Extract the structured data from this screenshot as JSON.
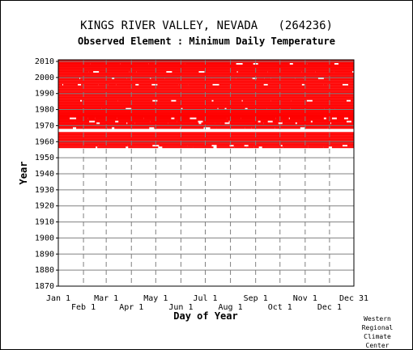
{
  "header": {
    "title": "KINGS RIVER VALLEY, NEVADA   (264236)",
    "subtitle": "Observed Element : Minimum Daily Temperature"
  },
  "credit": [
    "Western",
    "Regional",
    "Climate",
    "Center"
  ],
  "colors": {
    "data": "#ff0000",
    "grid": "#808080",
    "background": "#ffffff",
    "axis": "#000000"
  },
  "chart_data": {
    "type": "heatmap",
    "title": "KINGS RIVER VALLEY, NEVADA   (264236)",
    "subtitle": "Observed Element : Minimum Daily Temperature",
    "xlabel": "Day of Year",
    "ylabel": "Year",
    "x_ticks_top_row": [
      "Jan 1",
      "Mar 1",
      "May 1",
      "Jul 1",
      "Sep 1",
      "Nov 1",
      "Dec 31"
    ],
    "x_ticks_bottom_row": [
      "Feb 1",
      "Apr 1",
      "Jun 1",
      "Aug 1",
      "Oct 1",
      "Dec 1"
    ],
    "x_tick_days": [
      1,
      32,
      60,
      91,
      121,
      152,
      182,
      213,
      244,
      274,
      305,
      335,
      365
    ],
    "xlim": [
      1,
      365
    ],
    "y_ticks": [
      1870,
      1880,
      1890,
      1900,
      1910,
      1920,
      1930,
      1940,
      1950,
      1960,
      1970,
      1980,
      1990,
      2000,
      2010
    ],
    "ylim": [
      1870,
      2011
    ],
    "grid": true,
    "observed_year_range": [
      1956,
      2010
    ],
    "no_data_years": [
      1966,
      1967
    ],
    "partial_years": [
      1956,
      1957,
      1968,
      1971,
      1972,
      1974,
      1980,
      1985,
      1995,
      1999,
      2003,
      2008
    ],
    "legend": "none"
  }
}
